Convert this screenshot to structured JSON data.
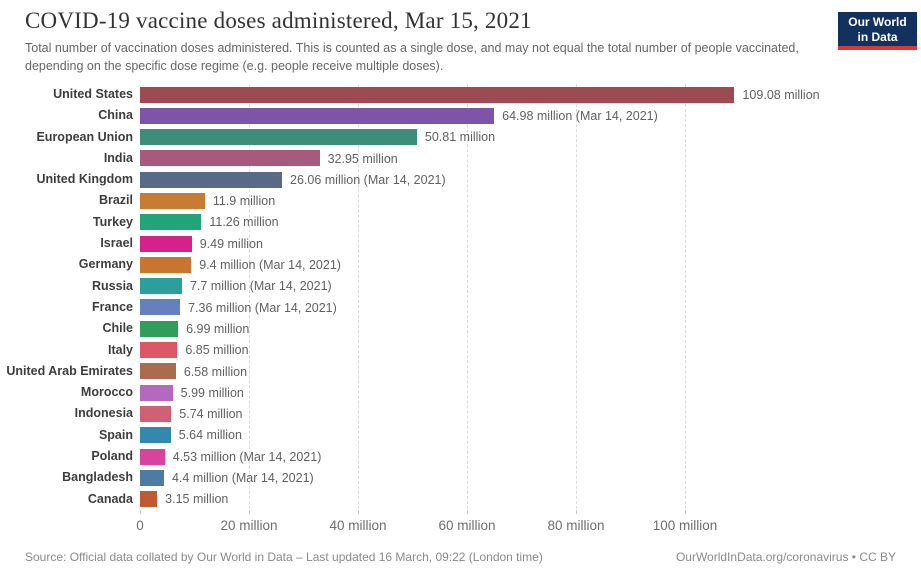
{
  "header": {
    "title": "COVID-19 vaccine doses administered, Mar 15, 2021",
    "subtitle": "Total number of vaccination doses administered. This is counted as a single dose, and may not equal the total number of people vaccinated, depending on the specific dose regime (e.g. people receive multiple doses).",
    "logo": {
      "line1": "Our World",
      "line2": "in Data",
      "bg_color": "#12315e",
      "stripe_color": "#e0362f"
    }
  },
  "chart_data": {
    "type": "bar",
    "orientation": "horizontal",
    "unit": "million doses",
    "grid": "dashed-vertical",
    "xlim": [
      0,
      142
    ],
    "categories": [
      "United States",
      "China",
      "European Union",
      "India",
      "United Kingdom",
      "Brazil",
      "Turkey",
      "Israel",
      "Germany",
      "Russia",
      "France",
      "Chile",
      "Italy",
      "United Arab Emirates",
      "Morocco",
      "Indonesia",
      "Spain",
      "Poland",
      "Bangladesh",
      "Canada"
    ],
    "values": [
      109.08,
      64.98,
      50.81,
      32.95,
      26.06,
      11.9,
      11.26,
      9.49,
      9.4,
      7.7,
      7.36,
      6.99,
      6.85,
      6.58,
      5.99,
      5.74,
      5.64,
      4.53,
      4.4,
      3.15
    ],
    "value_labels": [
      "109.08 million",
      "64.98 million (Mar 14, 2021)",
      "50.81 million",
      "32.95 million",
      "26.06 million (Mar 14, 2021)",
      "11.9 million",
      "11.26 million",
      "9.49 million",
      "9.4 million (Mar 14, 2021)",
      "7.7 million (Mar 14, 2021)",
      "7.36 million (Mar 14, 2021)",
      "6.99 million",
      "6.85 million",
      "6.58 million",
      "5.99 million",
      "5.74 million",
      "5.64 million",
      "4.53 million (Mar 14, 2021)",
      "4.4 million (Mar 14, 2021)",
      "3.15 million"
    ],
    "colors": [
      "#9e4a52",
      "#7c54a8",
      "#3e8d7a",
      "#a65b7e",
      "#586a87",
      "#c77b33",
      "#23a378",
      "#d6218c",
      "#c8762f",
      "#2b9f99",
      "#6581bd",
      "#2e9e58",
      "#dc5867",
      "#aa6b4e",
      "#b468bf",
      "#d06073",
      "#3389ad",
      "#d8439d",
      "#4d7ba2",
      "#c05a33"
    ],
    "x_ticks": [
      {
        "value": 0,
        "label": "0"
      },
      {
        "value": 20,
        "label": "20 million"
      },
      {
        "value": 40,
        "label": "40 million"
      },
      {
        "value": 60,
        "label": "60 million"
      },
      {
        "value": 80,
        "label": "80 million"
      },
      {
        "value": 100,
        "label": "100 million"
      }
    ]
  },
  "footer": {
    "source": "Source: Official data collated by Our World in Data – Last updated 16 March, 09:22 (London time)",
    "credit": "OurWorldInData.org/coronavirus • CC BY"
  }
}
